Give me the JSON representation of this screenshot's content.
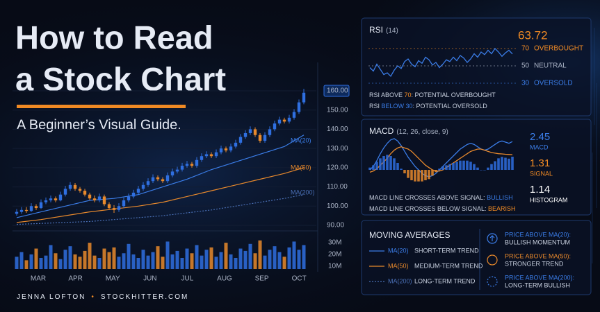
{
  "header": {
    "title_lines": [
      "How to Read",
      "a Stock Chart"
    ],
    "subtitle": "A Beginner’s Visual Guide."
  },
  "chart_data": [
    {
      "type": "candlestick",
      "up_color": "#2f6fe0",
      "down_color": "#e8892c",
      "grid": true,
      "ohlc": [
        [
          96,
          98.5,
          95,
          97
        ],
        [
          97,
          99.5,
          96,
          98
        ],
        [
          98,
          99.5,
          96.5,
          97.5
        ],
        [
          97.5,
          101.5,
          97,
          100
        ],
        [
          100,
          101,
          98,
          99
        ],
        [
          99,
          103.5,
          98.5,
          102
        ],
        [
          102,
          104.5,
          101,
          103
        ],
        [
          103,
          105.5,
          102,
          104
        ],
        [
          104,
          105,
          102,
          103
        ],
        [
          103,
          107.5,
          102.5,
          106
        ],
        [
          106,
          110.5,
          105,
          109
        ],
        [
          109,
          112.5,
          108,
          111
        ],
        [
          111,
          112,
          108,
          109
        ],
        [
          109,
          110,
          107,
          108
        ],
        [
          108,
          109,
          105,
          106
        ],
        [
          106,
          107,
          103,
          104
        ],
        [
          104,
          105.5,
          102,
          103
        ],
        [
          103,
          106.5,
          102,
          105
        ],
        [
          105,
          106,
          100,
          101
        ],
        [
          101,
          102,
          98,
          99
        ],
        [
          99,
          100.5,
          96.5,
          98
        ],
        [
          98,
          101.5,
          97,
          100
        ],
        [
          100,
          104.5,
          99,
          103
        ],
        [
          103,
          106.5,
          102,
          105
        ],
        [
          105,
          108.5,
          104,
          107
        ],
        [
          107,
          110.5,
          106,
          109
        ],
        [
          109,
          112.5,
          108,
          111
        ],
        [
          111,
          114.5,
          110,
          113
        ],
        [
          113,
          116.5,
          112,
          115
        ],
        [
          115,
          116,
          113,
          114
        ],
        [
          114,
          115,
          112,
          113
        ],
        [
          113,
          117.5,
          112,
          116
        ],
        [
          116,
          119.5,
          115,
          118
        ],
        [
          118,
          120.5,
          117,
          119
        ],
        [
          119,
          122.5,
          118,
          121
        ],
        [
          121,
          123.5,
          120,
          122
        ],
        [
          122,
          123,
          120,
          121
        ],
        [
          121,
          125.5,
          120,
          124
        ],
        [
          124,
          127.5,
          123,
          126
        ],
        [
          126,
          128.5,
          125,
          127
        ],
        [
          127,
          128,
          125,
          126
        ],
        [
          126,
          129.5,
          125,
          128
        ],
        [
          128,
          131.5,
          127,
          130
        ],
        [
          130,
          131,
          128,
          129
        ],
        [
          129,
          132.5,
          128,
          131
        ],
        [
          131,
          134.5,
          130,
          133
        ],
        [
          133,
          137.5,
          132,
          136
        ],
        [
          136,
          139.5,
          135,
          138
        ],
        [
          138,
          141.5,
          137,
          140
        ],
        [
          140,
          141,
          136,
          137
        ],
        [
          137,
          138,
          133,
          134
        ],
        [
          134,
          138.5,
          133,
          137
        ],
        [
          137,
          141.5,
          136,
          140
        ],
        [
          140,
          144.5,
          139,
          143
        ],
        [
          143,
          146.5,
          142,
          145
        ],
        [
          145,
          146,
          143,
          144
        ],
        [
          144,
          147.5,
          143,
          146
        ],
        [
          146,
          150.5,
          145,
          149
        ],
        [
          149,
          155.5,
          148,
          154
        ],
        [
          154,
          161,
          153,
          159
        ]
      ],
      "ylim": [
        90,
        160
      ],
      "yticks": [
        {
          "value": 90,
          "label": "90.00"
        },
        {
          "value": 100,
          "label": "100.00"
        },
        {
          "value": 110,
          "label": "110.00"
        },
        {
          "value": 120,
          "label": "120.00"
        },
        {
          "value": 130,
          "label": "130.00"
        },
        {
          "value": 140,
          "label": "140.00"
        },
        {
          "value": 150,
          "label": "150.00"
        },
        {
          "value": 160,
          "label": "160.00"
        }
      ],
      "x_tick_labels": [
        "MAR",
        "APR",
        "MAY",
        "JUN",
        "JUL",
        "AUG",
        "SEP",
        "OCT"
      ],
      "series": [
        {
          "name": "MA(20)",
          "color": "#3b7de8",
          "style": "solid",
          "x": [
            0,
            5,
            10,
            15,
            20,
            25,
            30,
            35,
            40,
            45,
            50,
            55,
            59
          ],
          "values": [
            94,
            97,
            100,
            103,
            104,
            106,
            110,
            114,
            119,
            123,
            127,
            131,
            137
          ]
        },
        {
          "name": "MA(50)",
          "color": "#e8892c",
          "style": "solid",
          "x": [
            0,
            5,
            10,
            15,
            20,
            25,
            30,
            35,
            40,
            45,
            50,
            55,
            59
          ],
          "values": [
            91.5,
            93,
            95,
            97,
            98.5,
            100,
            102,
            105,
            108,
            111,
            114,
            117,
            120
          ]
        },
        {
          "name": "MA(200)",
          "color": "#4a6fb5",
          "style": "dotted",
          "x": [
            0,
            5,
            10,
            15,
            20,
            25,
            30,
            35,
            40,
            45,
            50,
            55,
            59
          ],
          "values": [
            90.5,
            91,
            91.5,
            92,
            93,
            94,
            95,
            96.5,
            98,
            100,
            102,
            104,
            106
          ]
        }
      ]
    },
    {
      "type": "volume-bar",
      "values": [
        18,
        22,
        15,
        20,
        25,
        17,
        19,
        28,
        21,
        16,
        24,
        27,
        20,
        18,
        23,
        30,
        19,
        17,
        25,
        22,
        26,
        18,
        21,
        29,
        20,
        17,
        24,
        19,
        22,
        27,
        18,
        31,
        20,
        23,
        17,
        25,
        21,
        28,
        19,
        24,
        26,
        18,
        22,
        30,
        20,
        17,
        25,
        23,
        29,
        21,
        32,
        19,
        24,
        27,
        22,
        18,
        26,
        31,
        24,
        28
      ],
      "ylim": [
        7.5,
        36
      ],
      "yticks": [
        {
          "value": 10,
          "label": "10M"
        },
        {
          "value": 20,
          "label": "20M"
        },
        {
          "value": 30,
          "label": "30M"
        }
      ]
    },
    {
      "type": "rsi",
      "title": "RSI",
      "subtitle": "(14)",
      "color": "#3b7de8",
      "value_color": "#f08a24",
      "values": [
        48,
        44,
        52,
        46,
        40,
        42,
        38,
        45,
        50,
        47,
        55,
        58,
        52,
        49,
        56,
        53,
        60,
        57,
        51,
        54,
        48,
        52,
        57,
        55,
        60,
        56,
        62,
        59,
        54,
        58,
        64,
        60,
        66,
        63,
        68,
        64,
        70,
        66,
        61,
        65,
        68,
        63.72
      ],
      "ylim": [
        20,
        80
      ],
      "yticks": [
        30,
        50,
        70
      ],
      "level_names": [
        "OVERSOLD",
        "NEUTRAL",
        "OVERBOUGHT"
      ],
      "level_colors": [
        "#3b7de8",
        "#aab3c5",
        "#f08a24"
      ],
      "notes": [
        {
          "before": "RSI ABOVE ",
          "accent": "70",
          "after": ": POTENTIAL OVERBOUGHT",
          "color": "#f08a24"
        },
        {
          "before": "RSI ",
          "accent": "BELOW 30",
          "after": ": POTENTIAL OVERSOLD",
          "color": "#3b7de8"
        }
      ]
    },
    {
      "type": "macd",
      "title": "MACD",
      "subtitle": "(12, 26, close, 9)",
      "ylim": [
        -1.5,
        3
      ],
      "series": [
        {
          "name": "MACD",
          "color": "#3b7de8",
          "label_color": "#3b7de8",
          "values": [
            0.0,
            0.3,
            0.8,
            1.4,
            1.9,
            2.3,
            2.6,
            2.7,
            2.5,
            2.1,
            1.6,
            1.1,
            0.7,
            0.3,
            0.0,
            -0.3,
            -0.5,
            -0.6,
            -0.5,
            -0.3,
            0.0,
            0.3,
            0.6,
            0.9,
            1.2,
            1.5,
            1.8,
            2.0,
            2.2,
            2.3,
            2.2,
            2.0,
            1.8,
            1.7,
            1.8,
            2.0,
            2.2,
            2.4,
            2.5,
            2.4,
            2.3,
            2.45
          ]
        },
        {
          "name": "SIGNAL",
          "color": "#e8892c",
          "label_color": "#f08a24",
          "values": [
            -0.2,
            -0.1,
            0.1,
            0.4,
            0.7,
            1.0,
            1.4,
            1.7,
            1.9,
            2.0,
            1.9,
            1.8,
            1.6,
            1.3,
            1.0,
            0.7,
            0.4,
            0.2,
            0.0,
            -0.1,
            -0.1,
            0.0,
            0.2,
            0.4,
            0.6,
            0.8,
            1.0,
            1.2,
            1.4,
            1.6,
            1.7,
            1.8,
            1.8,
            1.7,
            1.6,
            1.5,
            1.45,
            1.4,
            1.38,
            1.35,
            1.33,
            1.31
          ]
        },
        {
          "name": "HISTOGRAM",
          "color": "#2f6fe0",
          "negative_color": "#e8892c",
          "label_color": "#ffffff",
          "values": [
            0.2,
            0.4,
            0.7,
            1.0,
            1.2,
            1.3,
            1.2,
            1.0,
            0.6,
            0.1,
            -0.3,
            -0.7,
            -0.9,
            -1.0,
            -1.0,
            -1.0,
            -0.9,
            -0.8,
            -0.5,
            -0.2,
            0.1,
            0.3,
            0.4,
            0.5,
            0.6,
            0.7,
            0.8,
            0.8,
            0.8,
            0.7,
            0.5,
            0.2,
            0.0,
            0.0,
            0.2,
            0.5,
            0.75,
            1.0,
            1.12,
            1.05,
            0.97,
            1.14
          ]
        }
      ],
      "notes": [
        {
          "before": "MACD LINE CROSSES ABOVE SIGNAL: ",
          "accent": "BULLISH",
          "color": "#3b7de8"
        },
        {
          "before": "MACD LINE CROSSES BELOW SIGNAL: ",
          "accent": "BEARISH",
          "color": "#f08a24"
        }
      ]
    }
  ],
  "moving_averages": {
    "title": "MOVING AVERAGES",
    "items": [
      {
        "name": "MA(20)",
        "meaning": "SHORT-TERM TREND",
        "color": "#3b7de8",
        "style": "solid"
      },
      {
        "name": "MA(50)",
        "meaning": "MEDIUM-TERM TREND",
        "color": "#e8892c",
        "style": "solid"
      },
      {
        "name": "MA(200)",
        "meaning": "LONG-TERM TREND",
        "color": "#4a6fb5",
        "style": "dotted"
      }
    ],
    "rules": [
      {
        "lines": [
          "PRICE ABOVE MA(20):",
          "BULLISH MOMENTUM"
        ],
        "color": "#3b7de8"
      },
      {
        "lines": [
          "PRICE ABOVE MA(50):",
          "STRONGER TREND"
        ],
        "color": "#e8892c"
      },
      {
        "lines": [
          "PRICE ABOVE MA(200):",
          "LONG-TERM BULLISH"
        ],
        "color": "#3b7de8"
      }
    ]
  },
  "footer": {
    "author": "JENNA LOFTON",
    "separator": "•",
    "site": "STOCKHITTER.COM"
  }
}
